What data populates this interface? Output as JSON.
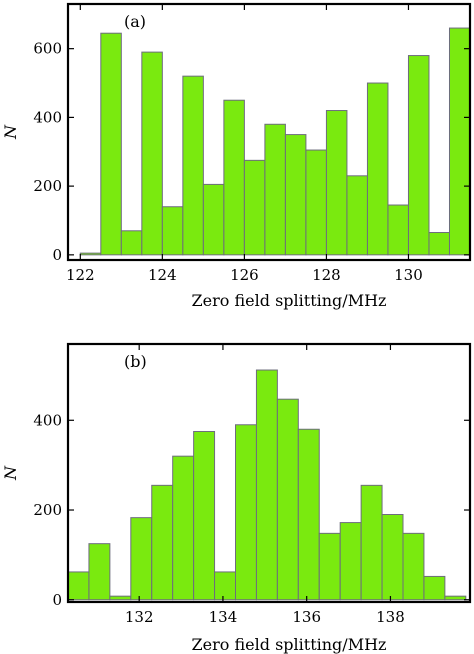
{
  "chart_data": [
    {
      "type": "bar",
      "panel_label": "(a)",
      "xlabel": "Zero field splitting/MHz",
      "ylabel": "N",
      "bin_start": 122.0,
      "bin_width": 0.5,
      "values": [
        5,
        645,
        70,
        590,
        140,
        520,
        205,
        450,
        275,
        380,
        350,
        305,
        420,
        230,
        500,
        145,
        580,
        65,
        660
      ],
      "xlim": [
        121.7,
        131.5
      ],
      "ylim": [
        -15,
        730
      ],
      "xticks": [
        122,
        124,
        126,
        128,
        130
      ],
      "yticks": [
        0,
        200,
        400,
        600
      ],
      "bar_color": "#7aea0f",
      "edge_color": "#6d6d7d",
      "grid": false
    },
    {
      "type": "bar",
      "panel_label": "(b)",
      "xlabel": "Zero field splitting/MHz",
      "ylabel": "N",
      "bin_start": 130.3,
      "bin_width": 0.5,
      "values": [
        62,
        125,
        8,
        183,
        255,
        320,
        375,
        62,
        390,
        512,
        447,
        380,
        148,
        172,
        255,
        190,
        148,
        52,
        8
      ],
      "xlim": [
        130.3,
        139.9
      ],
      "ylim": [
        -5,
        570
      ],
      "xticks": [
        132,
        134,
        136,
        138
      ],
      "yticks": [
        0,
        200,
        400
      ],
      "bar_color": "#7aea0f",
      "edge_color": "#6d6d7d",
      "grid": false
    }
  ]
}
